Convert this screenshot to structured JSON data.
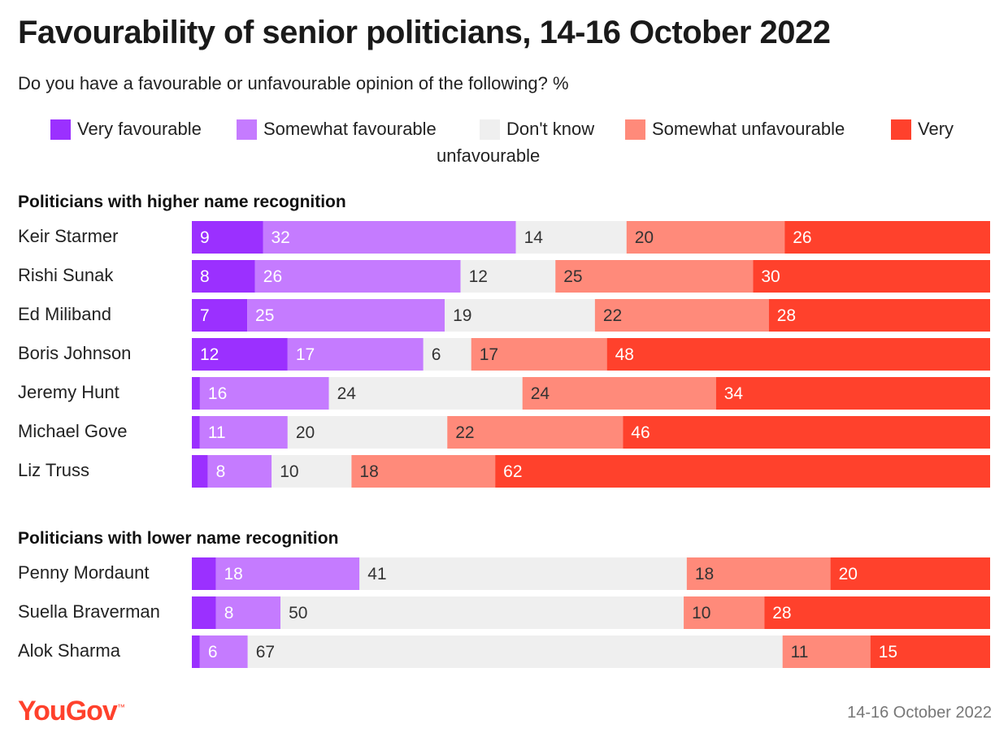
{
  "chart_data": {
    "type": "bar",
    "stacked": true,
    "orientation": "horizontal",
    "title": "Favourability of senior politicians, 14-16 October 2022",
    "subtitle": "Do you have a favourable or unfavourable opinion of the following? %",
    "legend": {
      "placement": "top",
      "items": [
        {
          "label": "Very favourable",
          "color": "#9b30ff"
        },
        {
          "label": "Somewhat favourable",
          "color": "#c57bff"
        },
        {
          "label": "Don't know",
          "color": "#efefef"
        },
        {
          "label": "Somewhat unfavourable",
          "color": "#ff8a7a"
        },
        {
          "label": "Very",
          "color": "#ff412c"
        }
      ],
      "wrap_text": "unfavourable"
    },
    "series_names": [
      "Very favourable",
      "Somewhat favourable",
      "Don't know",
      "Somewhat unfavourable",
      "Very unfavourable"
    ],
    "groups": [
      {
        "title": "Politicians with higher name recognition",
        "rows": [
          {
            "name": "Keir Starmer",
            "values": [
              9,
              32,
              14,
              20,
              26
            ]
          },
          {
            "name": "Rishi Sunak",
            "values": [
              8,
              26,
              12,
              25,
              30
            ]
          },
          {
            "name": "Ed Miliband",
            "values": [
              7,
              25,
              19,
              22,
              28
            ]
          },
          {
            "name": "Boris Johnson",
            "values": [
              12,
              17,
              6,
              17,
              48
            ]
          },
          {
            "name": "Jeremy Hunt",
            "values": [
              1,
              16,
              24,
              24,
              34
            ]
          },
          {
            "name": "Michael Gove",
            "values": [
              1,
              11,
              20,
              22,
              46
            ]
          },
          {
            "name": "Liz Truss",
            "values": [
              2,
              8,
              10,
              18,
              62
            ]
          }
        ]
      },
      {
        "title": "Politicians with lower name recognition",
        "rows": [
          {
            "name": "Penny Mordaunt",
            "values": [
              3,
              18,
              41,
              18,
              20
            ]
          },
          {
            "name": "Suella Braverman",
            "values": [
              3,
              8,
              50,
              10,
              28
            ]
          },
          {
            "name": "Alok Sharma",
            "values": [
              1,
              6,
              67,
              11,
              15
            ]
          }
        ]
      }
    ],
    "label_threshold": 5,
    "xlim": [
      0,
      100
    ],
    "grid": false
  },
  "footer": {
    "brand": "YouGov",
    "date": "14-16 October 2022"
  }
}
